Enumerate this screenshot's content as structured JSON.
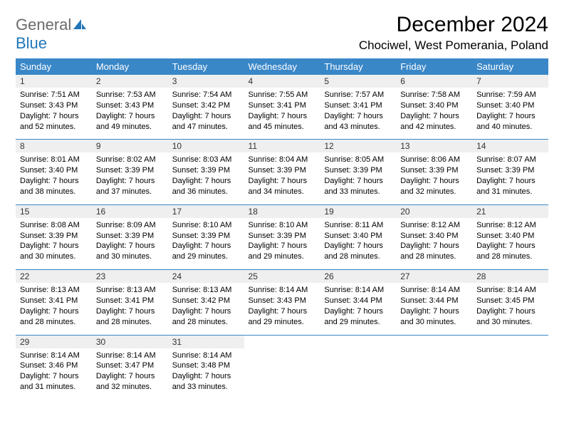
{
  "logo": {
    "text1": "General",
    "text2": "Blue"
  },
  "title": "December 2024",
  "subtitle": "Chociwel, West Pomerania, Poland",
  "colors": {
    "header_bg": "#3a87c8",
    "header_text": "#ffffff",
    "daynum_bg": "#efefef",
    "row_border": "#3a87c8",
    "logo_gray": "#6a6a6a",
    "logo_blue": "#2176b8"
  },
  "day_headers": [
    "Sunday",
    "Monday",
    "Tuesday",
    "Wednesday",
    "Thursday",
    "Friday",
    "Saturday"
  ],
  "weeks": [
    [
      {
        "n": "1",
        "sr": "7:51 AM",
        "ss": "3:43 PM",
        "dh": "7",
        "dm": "52"
      },
      {
        "n": "2",
        "sr": "7:53 AM",
        "ss": "3:43 PM",
        "dh": "7",
        "dm": "49"
      },
      {
        "n": "3",
        "sr": "7:54 AM",
        "ss": "3:42 PM",
        "dh": "7",
        "dm": "47"
      },
      {
        "n": "4",
        "sr": "7:55 AM",
        "ss": "3:41 PM",
        "dh": "7",
        "dm": "45"
      },
      {
        "n": "5",
        "sr": "7:57 AM",
        "ss": "3:41 PM",
        "dh": "7",
        "dm": "43"
      },
      {
        "n": "6",
        "sr": "7:58 AM",
        "ss": "3:40 PM",
        "dh": "7",
        "dm": "42"
      },
      {
        "n": "7",
        "sr": "7:59 AM",
        "ss": "3:40 PM",
        "dh": "7",
        "dm": "40"
      }
    ],
    [
      {
        "n": "8",
        "sr": "8:01 AM",
        "ss": "3:40 PM",
        "dh": "7",
        "dm": "38"
      },
      {
        "n": "9",
        "sr": "8:02 AM",
        "ss": "3:39 PM",
        "dh": "7",
        "dm": "37"
      },
      {
        "n": "10",
        "sr": "8:03 AM",
        "ss": "3:39 PM",
        "dh": "7",
        "dm": "36"
      },
      {
        "n": "11",
        "sr": "8:04 AM",
        "ss": "3:39 PM",
        "dh": "7",
        "dm": "34"
      },
      {
        "n": "12",
        "sr": "8:05 AM",
        "ss": "3:39 PM",
        "dh": "7",
        "dm": "33"
      },
      {
        "n": "13",
        "sr": "8:06 AM",
        "ss": "3:39 PM",
        "dh": "7",
        "dm": "32"
      },
      {
        "n": "14",
        "sr": "8:07 AM",
        "ss": "3:39 PM",
        "dh": "7",
        "dm": "31"
      }
    ],
    [
      {
        "n": "15",
        "sr": "8:08 AM",
        "ss": "3:39 PM",
        "dh": "7",
        "dm": "30"
      },
      {
        "n": "16",
        "sr": "8:09 AM",
        "ss": "3:39 PM",
        "dh": "7",
        "dm": "30"
      },
      {
        "n": "17",
        "sr": "8:10 AM",
        "ss": "3:39 PM",
        "dh": "7",
        "dm": "29"
      },
      {
        "n": "18",
        "sr": "8:10 AM",
        "ss": "3:39 PM",
        "dh": "7",
        "dm": "29"
      },
      {
        "n": "19",
        "sr": "8:11 AM",
        "ss": "3:40 PM",
        "dh": "7",
        "dm": "28"
      },
      {
        "n": "20",
        "sr": "8:12 AM",
        "ss": "3:40 PM",
        "dh": "7",
        "dm": "28"
      },
      {
        "n": "21",
        "sr": "8:12 AM",
        "ss": "3:40 PM",
        "dh": "7",
        "dm": "28"
      }
    ],
    [
      {
        "n": "22",
        "sr": "8:13 AM",
        "ss": "3:41 PM",
        "dh": "7",
        "dm": "28"
      },
      {
        "n": "23",
        "sr": "8:13 AM",
        "ss": "3:41 PM",
        "dh": "7",
        "dm": "28"
      },
      {
        "n": "24",
        "sr": "8:13 AM",
        "ss": "3:42 PM",
        "dh": "7",
        "dm": "28"
      },
      {
        "n": "25",
        "sr": "8:14 AM",
        "ss": "3:43 PM",
        "dh": "7",
        "dm": "29"
      },
      {
        "n": "26",
        "sr": "8:14 AM",
        "ss": "3:44 PM",
        "dh": "7",
        "dm": "29"
      },
      {
        "n": "27",
        "sr": "8:14 AM",
        "ss": "3:44 PM",
        "dh": "7",
        "dm": "30"
      },
      {
        "n": "28",
        "sr": "8:14 AM",
        "ss": "3:45 PM",
        "dh": "7",
        "dm": "30"
      }
    ],
    [
      {
        "n": "29",
        "sr": "8:14 AM",
        "ss": "3:46 PM",
        "dh": "7",
        "dm": "31"
      },
      {
        "n": "30",
        "sr": "8:14 AM",
        "ss": "3:47 PM",
        "dh": "7",
        "dm": "32"
      },
      {
        "n": "31",
        "sr": "8:14 AM",
        "ss": "3:48 PM",
        "dh": "7",
        "dm": "33"
      },
      null,
      null,
      null,
      null
    ]
  ],
  "labels": {
    "sunrise_prefix": "Sunrise: ",
    "sunset_prefix": "Sunset: ",
    "daylight_prefix": "Daylight: ",
    "hours_word": " hours",
    "and_word": "and ",
    "minutes_word": " minutes."
  }
}
